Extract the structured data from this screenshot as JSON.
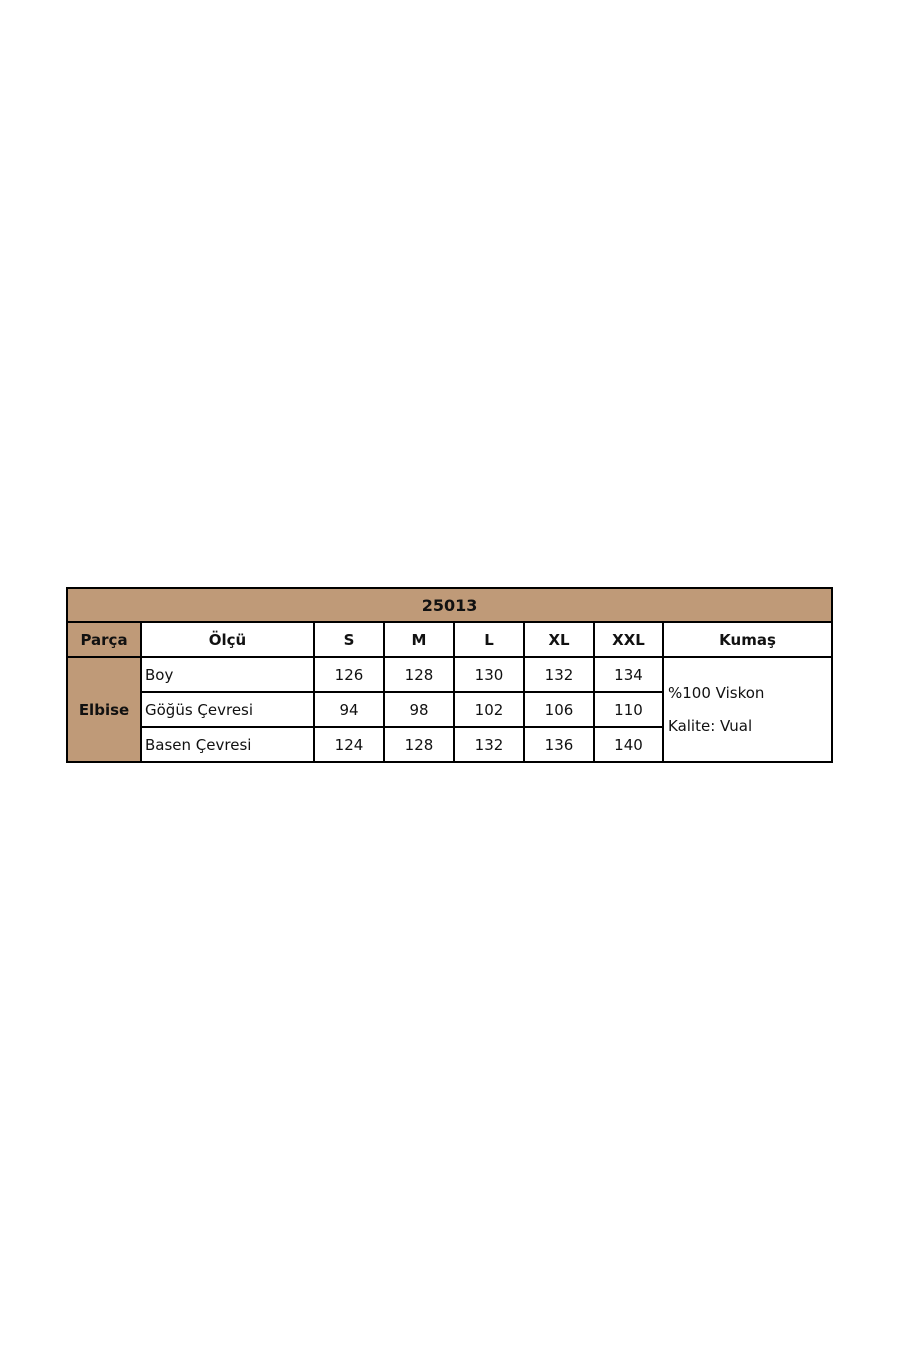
{
  "colors": {
    "header_bg": "#bf9a78",
    "border": "#000000"
  },
  "table": {
    "title": "25013",
    "headers": [
      "Parça",
      "Ölçü",
      "S",
      "M",
      "L",
      "XL",
      "XXL",
      "Kumaş"
    ],
    "part": "Elbise",
    "rows": [
      {
        "label": "Boy",
        "values": [
          "126",
          "128",
          "130",
          "132",
          "134"
        ]
      },
      {
        "label": "Göğüs Çevresi",
        "values": [
          "94",
          "98",
          "102",
          "106",
          "110"
        ]
      },
      {
        "label": "Basen Çevresi",
        "values": [
          "124",
          "128",
          "132",
          "136",
          "140"
        ]
      }
    ],
    "fabric": [
      "%100 Viskon",
      "Kalite: Vual"
    ]
  }
}
